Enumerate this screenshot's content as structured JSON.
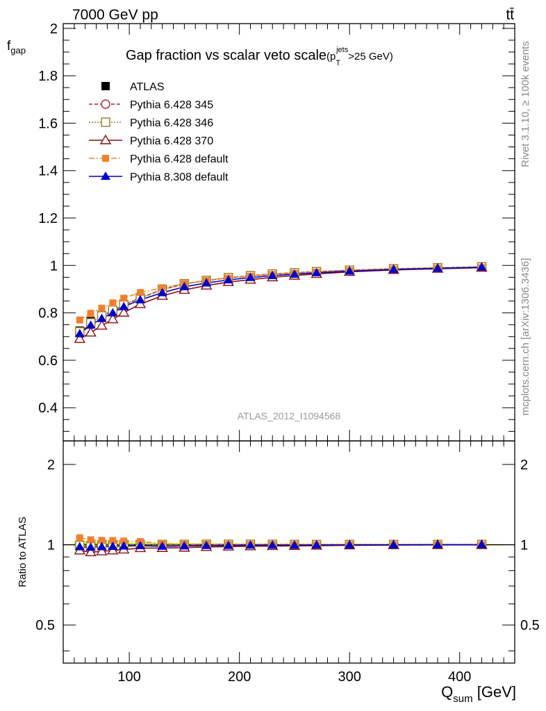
{
  "header": {
    "left": "7000 GeV pp",
    "right": "tt̄"
  },
  "side_labels": {
    "rivet": "Rivet 3.1.10, ≥ 100k events",
    "mcplots": "mcplots.cern.ch [arXiv:1306.3436]"
  },
  "chart_data": {
    "type": "line",
    "title": "Gap fraction vs scalar veto scale",
    "title_cut": {
      "main": "(p",
      "sub": "T",
      "sup": "jets",
      "tail": ">25 GeV)"
    },
    "analysis_label": "ATLAS_2012_I1094568",
    "xlabel": {
      "main": "Q",
      "sub": "sum",
      "tail": " [GeV]"
    },
    "ylabel": {
      "main": "f",
      "sub": "gap"
    },
    "ratio_ylabel": "Ratio to ATLAS",
    "xlim": [
      40,
      450
    ],
    "ylim": [
      0.26,
      2.02
    ],
    "ratio_ylim": [
      0.36,
      2.45
    ],
    "ratio_log": true,
    "x_ticks": [
      100,
      200,
      300,
      400
    ],
    "y_ticks": [
      0.4,
      0.6,
      0.8,
      1,
      1.2,
      1.4,
      1.6,
      1.8,
      2
    ],
    "ratio_ticks": [
      0.5,
      1,
      2
    ],
    "x": [
      55,
      65,
      75,
      85,
      95,
      110,
      130,
      150,
      170,
      190,
      210,
      230,
      250,
      270,
      300,
      340,
      380,
      420
    ],
    "data": {
      "name": "ATLAS",
      "values": [
        0.725,
        0.765,
        0.79,
        0.812,
        0.835,
        0.862,
        0.897,
        0.92,
        0.933,
        0.945,
        0.953,
        0.961,
        0.967,
        0.972,
        0.978,
        0.984,
        0.988,
        0.992
      ],
      "errors": [
        0.015,
        0.013,
        0.012,
        0.011,
        0.01,
        0.009,
        0.008,
        0.007,
        0.006,
        0.006,
        0.005,
        0.005,
        0.005,
        0.004,
        0.004,
        0.003,
        0.003,
        0.003
      ]
    },
    "series": [
      {
        "name": "Pythia 6.428 345",
        "color": "#b22222",
        "dash": "5,3",
        "marker": "circle-open",
        "values": [
          0.715,
          0.755,
          0.783,
          0.808,
          0.832,
          0.862,
          0.898,
          0.922,
          0.936,
          0.948,
          0.957,
          0.964,
          0.969,
          0.974,
          0.98,
          0.986,
          0.99,
          0.994
        ]
      },
      {
        "name": "Pythia 6.428 346",
        "color": "#9a7b22",
        "dash": "2,2",
        "marker": "square-open",
        "values": [
          0.72,
          0.758,
          0.787,
          0.811,
          0.835,
          0.864,
          0.899,
          0.923,
          0.937,
          0.949,
          0.957,
          0.964,
          0.969,
          0.974,
          0.98,
          0.986,
          0.99,
          0.994
        ]
      },
      {
        "name": "Pythia 6.428 370",
        "color": "#8b0a14",
        "dash": "",
        "marker": "triangle-open",
        "values": [
          0.69,
          0.717,
          0.746,
          0.773,
          0.801,
          0.837,
          0.872,
          0.897,
          0.915,
          0.93,
          0.94,
          0.95,
          0.957,
          0.964,
          0.973,
          0.981,
          0.986,
          0.99
        ]
      },
      {
        "name": "Pythia 6.428 default",
        "color": "#f08030",
        "dash": "8,3,2,3",
        "marker": "square-filled",
        "values": [
          0.77,
          0.798,
          0.82,
          0.842,
          0.862,
          0.886,
          0.906,
          0.923,
          0.936,
          0.947,
          0.955,
          0.962,
          0.967,
          0.972,
          0.978,
          0.984,
          0.988,
          0.991
        ]
      },
      {
        "name": "Pythia 8.308 default",
        "color": "#0000cc",
        "dash": "",
        "marker": "triangle-filled",
        "values": [
          0.712,
          0.748,
          0.776,
          0.8,
          0.826,
          0.855,
          0.885,
          0.91,
          0.926,
          0.939,
          0.949,
          0.957,
          0.963,
          0.969,
          0.976,
          0.983,
          0.988,
          0.992
        ]
      }
    ],
    "band_colors": [
      "#ffff66",
      "#66ff66"
    ],
    "legend_position": "top-left"
  }
}
